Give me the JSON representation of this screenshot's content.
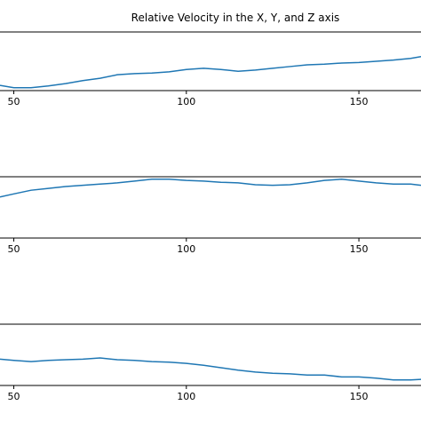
{
  "chart_data": [
    {
      "type": "line",
      "title": "Relative Velocity in the X, Y, and Z axis",
      "x": [
        46,
        50,
        55,
        60,
        65,
        70,
        75,
        80,
        85,
        90,
        95,
        100,
        105,
        110,
        115,
        120,
        125,
        130,
        135,
        140,
        145,
        150,
        155,
        160,
        165,
        168
      ],
      "values": [
        0.09,
        0.05,
        0.05,
        0.08,
        0.12,
        0.17,
        0.21,
        0.27,
        0.29,
        0.3,
        0.32,
        0.36,
        0.38,
        0.36,
        0.33,
        0.35,
        0.38,
        0.41,
        0.44,
        0.45,
        0.47,
        0.48,
        0.5,
        0.52,
        0.55,
        0.58
      ],
      "color": "#1f77b4",
      "xlim": [
        46,
        168
      ],
      "xticks": [
        50,
        100,
        150
      ],
      "ylim": [
        0,
        1
      ]
    },
    {
      "type": "line",
      "x": [
        46,
        50,
        55,
        60,
        65,
        70,
        75,
        80,
        85,
        90,
        95,
        100,
        105,
        110,
        115,
        120,
        125,
        130,
        135,
        140,
        145,
        150,
        155,
        160,
        165,
        168
      ],
      "values": [
        0.67,
        0.72,
        0.78,
        0.81,
        0.84,
        0.86,
        0.88,
        0.9,
        0.93,
        0.96,
        0.96,
        0.94,
        0.93,
        0.91,
        0.9,
        0.87,
        0.86,
        0.87,
        0.9,
        0.94,
        0.96,
        0.93,
        0.9,
        0.88,
        0.88,
        0.86
      ],
      "color": "#1f77b4",
      "xlim": [
        46,
        168
      ],
      "xticks": [
        50,
        100,
        150
      ],
      "ylim": [
        0,
        1
      ]
    },
    {
      "type": "line",
      "x": [
        46,
        50,
        55,
        60,
        65,
        70,
        75,
        80,
        85,
        90,
        95,
        100,
        105,
        110,
        115,
        120,
        125,
        130,
        135,
        140,
        145,
        150,
        155,
        160,
        165,
        168
      ],
      "values": [
        0.43,
        0.41,
        0.39,
        0.41,
        0.42,
        0.43,
        0.45,
        0.42,
        0.41,
        0.39,
        0.38,
        0.36,
        0.33,
        0.29,
        0.25,
        0.22,
        0.2,
        0.19,
        0.17,
        0.17,
        0.14,
        0.14,
        0.12,
        0.09,
        0.09,
        0.1
      ],
      "color": "#1f77b4",
      "xlim": [
        46,
        168
      ],
      "xticks": [
        50,
        100,
        150
      ],
      "ylim": [
        0,
        1
      ]
    }
  ]
}
